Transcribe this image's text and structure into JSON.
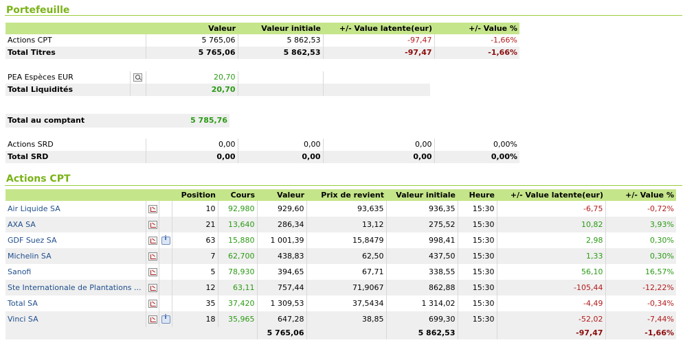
{
  "portefeuille": {
    "title": "Portefeuille",
    "headers": [
      "Valeur",
      "Valeur initiale",
      "+/- Value latente(eur)",
      "+/- Value %"
    ],
    "rows": [
      {
        "label": "Actions CPT",
        "valeur": "5 765,06",
        "initiale": "5 862,53",
        "latente": "-97,47",
        "pct": "-1,66%"
      },
      {
        "label": "Total Titres",
        "valeur": "5 765,06",
        "initiale": "5 862,53",
        "latente": "-97,47",
        "pct": "-1,66%"
      }
    ]
  },
  "liquidites": {
    "rows": [
      {
        "label": "PEA Espèces EUR",
        "icon": "search-icon",
        "valeur": "20,70"
      },
      {
        "label": "Total Liquidités",
        "valeur": "20,70"
      }
    ]
  },
  "comptant": {
    "label": "Total au comptant",
    "valeur": "5 785,76"
  },
  "srd": {
    "rows": [
      {
        "label": "Actions SRD",
        "valeur": "0,00",
        "initiale": "0,00",
        "latente": "0,00",
        "pct": "0,00%"
      },
      {
        "label": "Total SRD",
        "valeur": "0,00",
        "initiale": "0,00",
        "latente": "0,00",
        "pct": "0,00%"
      }
    ]
  },
  "actions": {
    "title": "Actions CPT",
    "headers": [
      "Position",
      "Cours",
      "Valeur",
      "Prix de revient",
      "Valeur initiale",
      "Heure",
      "+/- Value latente(eur)",
      "+/- Value %"
    ],
    "rows": [
      {
        "name": "Air Liquide SA",
        "info": false,
        "position": "10",
        "cours": "92,980",
        "valeur": "929,60",
        "prix": "93,635",
        "initiale": "936,35",
        "heure": "15:30",
        "latente": "-6,75",
        "pct": "-0,72%"
      },
      {
        "name": "AXA SA",
        "info": false,
        "position": "21",
        "cours": "13,640",
        "valeur": "286,34",
        "prix": "13,12",
        "initiale": "275,52",
        "heure": "15:30",
        "latente": "10,82",
        "pct": "3,93%"
      },
      {
        "name": "GDF Suez SA",
        "info": true,
        "position": "63",
        "cours": "15,880",
        "valeur": "1 001,39",
        "prix": "15,8479",
        "initiale": "998,41",
        "heure": "15:30",
        "latente": "2,98",
        "pct": "0,30%"
      },
      {
        "name": "Michelin SA",
        "info": false,
        "position": "7",
        "cours": "62,700",
        "valeur": "438,83",
        "prix": "62,50",
        "initiale": "437,50",
        "heure": "15:30",
        "latente": "1,33",
        "pct": "0,30%"
      },
      {
        "name": "Sanofi",
        "info": false,
        "position": "5",
        "cours": "78,930",
        "valeur": "394,65",
        "prix": "67,71",
        "initiale": "338,55",
        "heure": "15:30",
        "latente": "56,10",
        "pct": "16,57%"
      },
      {
        "name": "Ste Internationale de Plantations ...",
        "info": false,
        "position": "12",
        "cours": "63,11",
        "valeur": "757,44",
        "prix": "71,9067",
        "initiale": "862,88",
        "heure": "15:30",
        "latente": "-105,44",
        "pct": "-12,22%"
      },
      {
        "name": "Total SA",
        "info": false,
        "position": "35",
        "cours": "37,420",
        "valeur": "1 309,53",
        "prix": "37,5434",
        "initiale": "1 314,02",
        "heure": "15:30",
        "latente": "-4,49",
        "pct": "-0,34%"
      },
      {
        "name": "Vinci SA",
        "info": true,
        "position": "18",
        "cours": "35,965",
        "valeur": "647,28",
        "prix": "38,85",
        "initiale": "699,30",
        "heure": "15:30",
        "latente": "-52,02",
        "pct": "-7,44%"
      }
    ],
    "total": {
      "valeur": "5 765,06",
      "initiale": "5 862,53",
      "latente": "-97,47",
      "pct": "-1,66%"
    }
  },
  "icons": {
    "chart": "chart-icon",
    "info": "info-icon",
    "search": "search-icon"
  },
  "colors": {
    "accent": "#7ab317",
    "header_bg": "#c5e58a",
    "positive": "#2a9a14",
    "negative": "#b31b1b",
    "link": "#1f4e8c"
  }
}
